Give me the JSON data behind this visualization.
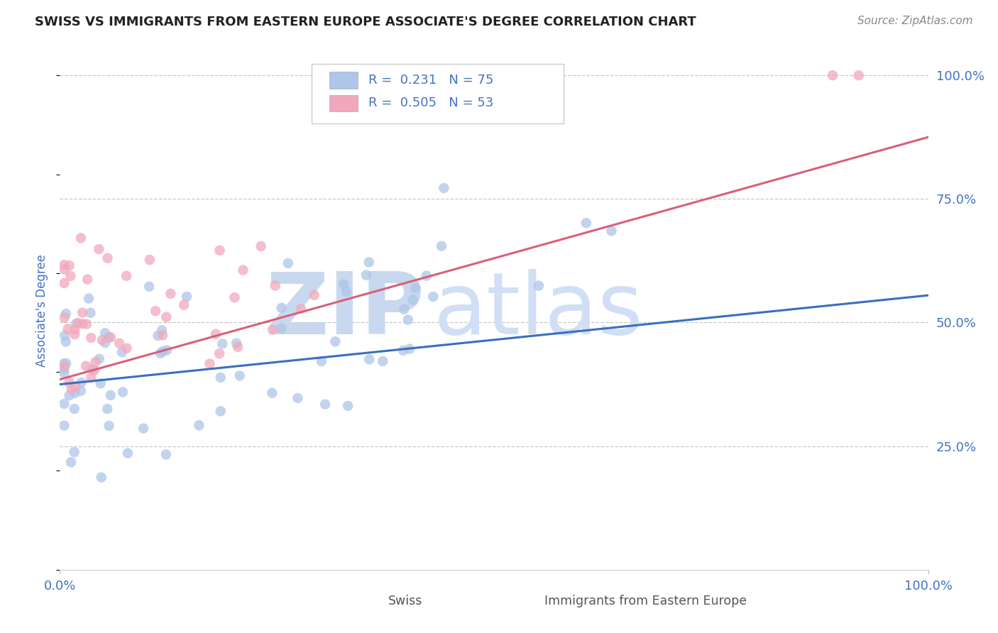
{
  "title": "SWISS VS IMMIGRANTS FROM EASTERN EUROPE ASSOCIATE'S DEGREE CORRELATION CHART",
  "source_text": "Source: ZipAtlas.com",
  "ylabel": "Associate's Degree",
  "watermark_zip": "ZIP",
  "watermark_atlas": "atlas",
  "xlim": [
    0.0,
    1.0
  ],
  "ylim": [
    0.0,
    1.05
  ],
  "xtick_positions": [
    0.0,
    1.0
  ],
  "xtick_labels": [
    "0.0%",
    "100.0%"
  ],
  "ytick_positions": [
    0.25,
    0.5,
    0.75,
    1.0
  ],
  "ytick_labels": [
    "25.0%",
    "50.0%",
    "75.0%",
    "100.0%"
  ],
  "legend_labels": [
    "Swiss",
    "Immigrants from Eastern Europe"
  ],
  "swiss_color": "#aec6e8",
  "imm_color": "#f2a8bc",
  "swiss_line_color": "#3a6fbf",
  "imm_line_color": "#d9607a",
  "R_swiss": "0.231",
  "N_swiss": "75",
  "R_imm": "0.505",
  "N_imm": "53",
  "background_color": "#ffffff",
  "grid_color": "#c8c8c8",
  "title_color": "#222222",
  "ylabel_color": "#4472c4",
  "tick_color": "#4472c4",
  "source_color": "#888888",
  "legend_text_color": "#222222",
  "legend_rn_color": "#4472c4",
  "watermark_zip_color": "#c8d8ee",
  "watermark_atlas_color": "#d0dff5",
  "bottom_legend_color": "#555555"
}
